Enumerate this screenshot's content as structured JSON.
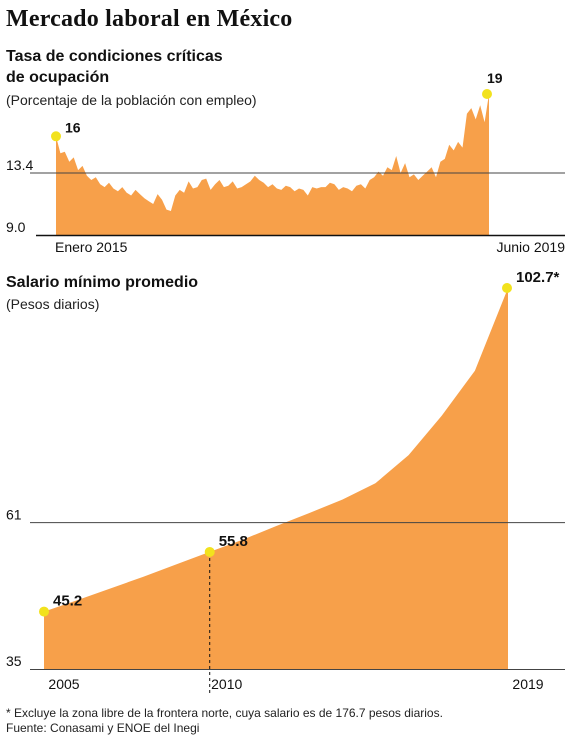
{
  "title": "Mercado laboral en México",
  "chart_data": [
    {
      "type": "area",
      "title": "Tasa de condiciones críticas de ocupación",
      "title_lines": [
        "Tasa de condiciones críticas",
        "de ocupación"
      ],
      "subtitle": "(Porcentaje de la población con empleo)",
      "x_range": [
        "2015-01",
        "2019-06"
      ],
      "x_labels": [
        "Enero 2015",
        "Junio 2019"
      ],
      "ylim": [
        9.0,
        19
      ],
      "yticks": [
        {
          "value": 9.0,
          "label": "9.0"
        },
        {
          "value": 13.4,
          "label": "13.4"
        }
      ],
      "reference_line": 13.4,
      "values": [
        16,
        14.8,
        14.9,
        14.2,
        14.5,
        13.6,
        13.9,
        13.2,
        12.9,
        13.1,
        12.6,
        12.4,
        12.7,
        12.3,
        12.1,
        12.4,
        12.0,
        11.8,
        12.2,
        11.9,
        11.6,
        11.4,
        11.2,
        11.9,
        11.5,
        10.8,
        10.7,
        11.8,
        12.2,
        12.0,
        12.8,
        12.3,
        12.4,
        12.9,
        13.0,
        12.2,
        12.6,
        12.9,
        12.4,
        12.5,
        12.8,
        12.3,
        12.4,
        12.6,
        12.8,
        13.2,
        12.9,
        12.7,
        12.4,
        12.6,
        12.3,
        12.2,
        12.5,
        12.4,
        12.1,
        12.3,
        12.2,
        11.8,
        12.4,
        12.3,
        12.4,
        12.4,
        12.7,
        12.6,
        12.2,
        12.4,
        12.3,
        12.1,
        12.5,
        12.6,
        12.3,
        12.9,
        13.1,
        13.5,
        13.2,
        13.8,
        13.6,
        14.6,
        13.4,
        14.1,
        13.1,
        13.3,
        12.9,
        13.2,
        13.5,
        13.8,
        13.1,
        14.2,
        14.4,
        15.4,
        15.0,
        15.6,
        15.2,
        17.6,
        18.0,
        17.2,
        18.2,
        17.0,
        19
      ],
      "annotations": [
        {
          "label": "16",
          "value": 16
        },
        {
          "label": "19",
          "value": 19
        }
      ],
      "color": "#F7A04A",
      "highlight_color": "#F2E21D"
    },
    {
      "type": "area",
      "title": "Salario mínimo promedio",
      "subtitle": "(Pesos diarios)",
      "x": [
        2005,
        2006,
        2007,
        2008,
        2009,
        2010,
        2011,
        2012,
        2013,
        2014,
        2015,
        2016,
        2017,
        2018,
        2019
      ],
      "values": [
        45.2,
        47.2,
        49.3,
        51.4,
        53.6,
        55.8,
        58.0,
        60.4,
        62.7,
        65.1,
        68.0,
        73.0,
        80.0,
        88.0,
        102.7
      ],
      "x_labels": [
        "2005",
        "2010",
        "2019"
      ],
      "ylim": [
        35,
        102.7
      ],
      "yticks": [
        {
          "value": 35,
          "label": "35"
        },
        {
          "value": 61,
          "label": "61"
        }
      ],
      "reference_line": 61,
      "annotations": [
        {
          "label": "45.2",
          "x": 2005,
          "value": 45.2
        },
        {
          "label": "55.8",
          "x": 2010,
          "value": 55.8
        },
        {
          "label": "102.7*",
          "x": 2019,
          "value": 102.7
        }
      ],
      "color": "#F7A04A",
      "highlight_color": "#F2E21D"
    }
  ],
  "footnotes": [
    "* Excluye la zona libre de la frontera norte, cuya salario es de 176.7 pesos diarios.",
    "Fuente: Conasami y ENOE del Inegi"
  ]
}
